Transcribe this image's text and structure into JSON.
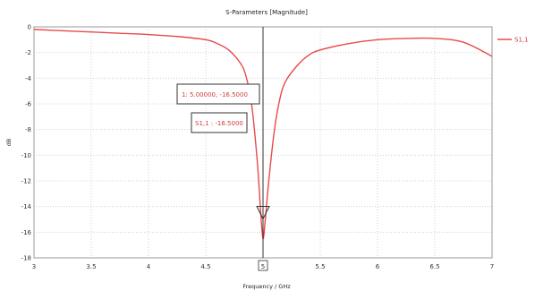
{
  "chart_data": {
    "type": "line",
    "title": "S-Parameters [Magnitude]",
    "xlabel": "Frequency / GHz",
    "ylabel": "dB",
    "xlim": [
      3,
      7
    ],
    "ylim": [
      -18,
      0
    ],
    "xticks": [
      "3",
      "3.5",
      "4",
      "4.5",
      "5",
      "5.5",
      "6",
      "6.5",
      "7"
    ],
    "xtick_values": [
      3,
      3.5,
      4,
      4.5,
      5,
      5.5,
      6,
      6.5,
      7
    ],
    "yticks": [
      "0",
      "-2",
      "-4",
      "-6",
      "-8",
      "-10",
      "-12",
      "-14",
      "-16",
      "-18"
    ],
    "ytick_values": [
      0,
      -2,
      -4,
      -6,
      -8,
      -10,
      -12,
      -14,
      -16,
      -18
    ],
    "grid": true,
    "legend_position": "top-right",
    "series": [
      {
        "name": "S1,1",
        "color": "#e84a4a",
        "x": [
          3.0,
          3.25,
          3.5,
          3.75,
          4.0,
          4.25,
          4.5,
          4.6,
          4.7,
          4.8,
          4.85,
          4.9,
          4.95,
          4.98,
          5.0,
          5.02,
          5.05,
          5.1,
          5.15,
          5.2,
          5.3,
          5.4,
          5.5,
          5.75,
          6.0,
          6.25,
          6.5,
          6.75,
          7.0
        ],
        "y": [
          -0.2,
          -0.3,
          -0.4,
          -0.5,
          -0.6,
          -0.75,
          -1.0,
          -1.3,
          -1.8,
          -2.8,
          -3.8,
          -6.0,
          -10.5,
          -14.5,
          -16.5,
          -15.0,
          -12.0,
          -8.0,
          -5.5,
          -4.2,
          -3.0,
          -2.2,
          -1.8,
          -1.3,
          -1.0,
          -0.9,
          -0.9,
          -1.2,
          -2.3
        ]
      }
    ],
    "marker": {
      "x": 5,
      "y": -16.5,
      "x_label": "5",
      "annotations": [
        "1: 5.00000, -16.5000",
        "S1,1 : -16.5000"
      ]
    }
  }
}
